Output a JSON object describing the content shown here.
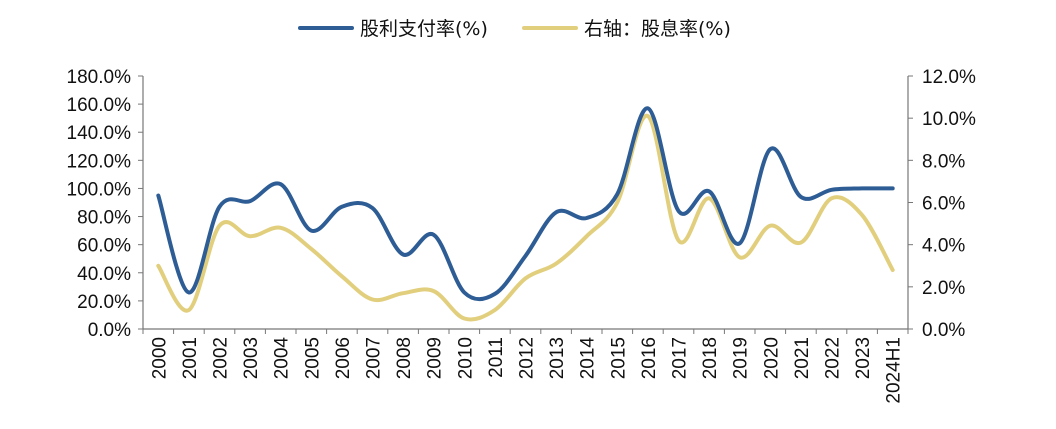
{
  "chart_data": {
    "type": "line",
    "title": "",
    "categories": [
      "2000",
      "2001",
      "2002",
      "2003",
      "2004",
      "2005",
      "2006",
      "2007",
      "2008",
      "2009",
      "2010",
      "2011",
      "2012",
      "2013",
      "2014",
      "2015",
      "2016",
      "2017",
      "2018",
      "2019",
      "2020",
      "2021",
      "2022",
      "2023",
      "2024H1"
    ],
    "y_left": {
      "ticks": [
        "0.0%",
        "20.0%",
        "40.0%",
        "60.0%",
        "80.0%",
        "100.0%",
        "120.0%",
        "140.0%",
        "160.0%",
        "180.0%"
      ],
      "ylim": [
        0,
        180
      ]
    },
    "y_right": {
      "ticks": [
        "0.0%",
        "2.0%",
        "4.0%",
        "6.0%",
        "8.0%",
        "10.0%",
        "12.0%"
      ],
      "ylim": [
        0,
        12
      ]
    },
    "legend_position": "top-center",
    "grid": false,
    "series": [
      {
        "name": "股利支付率(%)",
        "axis": "left",
        "color": "#2e5d95",
        "values": [
          95,
          26,
          87,
          91,
          103,
          70,
          87,
          86,
          53,
          67,
          26,
          25,
          52,
          83,
          79,
          96,
          157,
          84,
          98,
          61,
          128,
          94,
          99,
          100,
          100
        ]
      },
      {
        "name": "右轴：股息率(%)",
        "axis": "right",
        "color": "#e2cf7e",
        "values": [
          3.0,
          0.9,
          4.9,
          4.4,
          4.8,
          3.8,
          2.5,
          1.4,
          1.7,
          1.8,
          0.5,
          0.9,
          2.4,
          3.1,
          4.4,
          6.0,
          10.1,
          4.2,
          6.2,
          3.4,
          4.9,
          4.1,
          6.2,
          5.4,
          2.8
        ]
      }
    ]
  }
}
